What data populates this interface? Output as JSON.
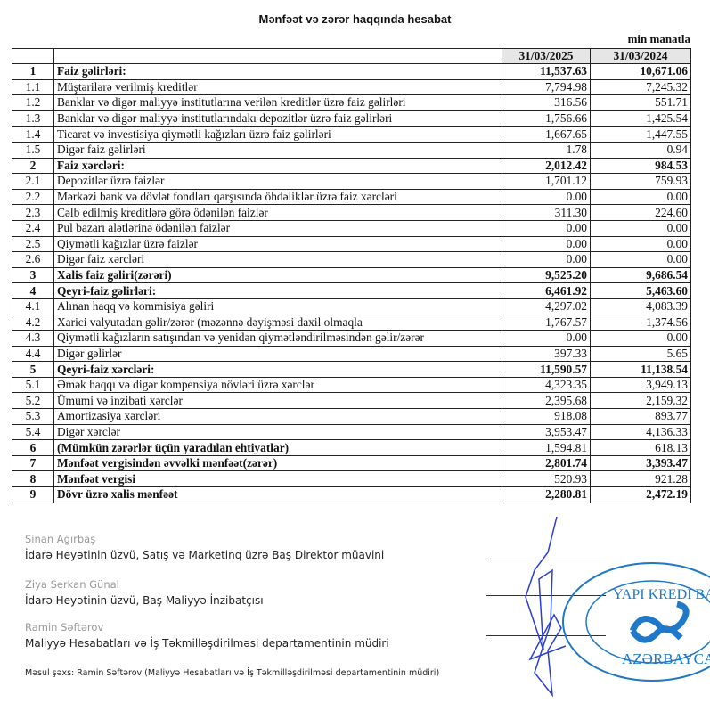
{
  "title": "Mənfəət və zərər haqqında hesabat",
  "unit": "min manatla",
  "columns": [
    "31/03/2025",
    "31/03/2024"
  ],
  "rows": [
    {
      "no": "1",
      "label": "Faiz gəlirləri:",
      "v1": "11,537.63",
      "v2": "10,671.06",
      "bold_label": true,
      "bold_values": true
    },
    {
      "no": "1.1",
      "label": "Müştərilərə verilmiş kreditlər",
      "v1": "7,794.98",
      "v2": "7,245.32"
    },
    {
      "no": "1.2",
      "label": "Banklar və digər maliyyə institutlarına verilən kreditlər üzrə faiz gəlirləri",
      "v1": "316.56",
      "v2": "551.71"
    },
    {
      "no": "1.3",
      "label": "Banklar və digər maliyyə institutlarındakı depozitlər üzrə faiz gəlirləri",
      "v1": "1,756.66",
      "v2": "1,425.54"
    },
    {
      "no": "1.4",
      "label": "Ticarət və investisiya qiymətli kağızları üzrə faiz gəlirləri",
      "v1": "1,667.65",
      "v2": "1,447.55"
    },
    {
      "no": "1.5",
      "label": "Digər faiz gəlirləri",
      "v1": "1.78",
      "v2": "0.94"
    },
    {
      "no": "2",
      "label": "Faiz xərcləri:",
      "v1": "2,012.42",
      "v2": "984.53",
      "bold_label": true,
      "bold_values": true
    },
    {
      "no": "2.1",
      "label": "Depozitlər üzrə faizlər",
      "v1": "1,701.12",
      "v2": "759.93"
    },
    {
      "no": "2.2",
      "label": "Mərkəzi bank və dövlət fondları qarşısında öhdəliklər üzrə faiz xərcləri",
      "v1": "0.00",
      "v2": "0.00"
    },
    {
      "no": "2.3",
      "label": "Cəlb edilmiş kreditlərə görə ödənilən faizlər",
      "v1": "311.30",
      "v2": "224.60"
    },
    {
      "no": "2.4",
      "label": "Pul bazarı alətlərinə ödənilən faizlər",
      "v1": "0.00",
      "v2": "0.00"
    },
    {
      "no": "2.5",
      "label": "Qiymətli kağızlar üzrə faizlər",
      "v1": "0.00",
      "v2": "0.00"
    },
    {
      "no": "2.6",
      "label": "Digər faiz xərcləri",
      "v1": "0.00",
      "v2": "0.00"
    },
    {
      "no": "3",
      "label": "Xalis faiz gəliri(zərəri)",
      "v1": "9,525.20",
      "v2": "9,686.54",
      "bold_label": true,
      "bold_values": true
    },
    {
      "no": "4",
      "label": "Qeyri-faiz gəlirləri:",
      "v1": "6,461.92",
      "v2": "5,463.60",
      "bold_label": true,
      "bold_values": true
    },
    {
      "no": "4.1",
      "label": "Alınan haqq və kommisiya gəliri",
      "v1": "4,297.02",
      "v2": "4,083.39"
    },
    {
      "no": "4.2",
      "label": "Xarici valyutadan gəlir/zərər (məzənnə dəyişməsi daxil olmaqla",
      "v1": "1,767.57",
      "v2": "1,374.56"
    },
    {
      "no": "4.3",
      "label": "Qiymətli kağızların satışından və yenidən qiymətləndirilməsindən gəlir/zərər",
      "v1": "0.00",
      "v2": "0.00"
    },
    {
      "no": "4.4",
      "label": "Digər gəlirlər",
      "v1": "397.33",
      "v2": "5.65"
    },
    {
      "no": "5",
      "label": "Qeyri-faiz xərcləri:",
      "v1": "11,590.57",
      "v2": "11,138.54",
      "bold_label": true,
      "bold_values": true
    },
    {
      "no": "5.1",
      "label": "Əmək haqqı və digər kompensiya növləri üzrə xərclər",
      "v1": "4,323.35",
      "v2": "3,949.13"
    },
    {
      "no": "5.2",
      "label": "Ümumi və inzibati xərclər",
      "v1": "2,395.68",
      "v2": "2,159.32"
    },
    {
      "no": "5.3",
      "label": "Amortizasiya xərcləri",
      "v1": "918.08",
      "v2": "893.77"
    },
    {
      "no": "5.4",
      "label": "Digər xərclər",
      "v1": "3,953.47",
      "v2": "4,136.33"
    },
    {
      "no": "6",
      "label": "(Mümkün zərərlər üçün yaradılan ehtiyatlar)",
      "v1": "1,594.81",
      "v2": "618.13",
      "bold_label": true
    },
    {
      "no": "7",
      "label": "Mənfəət vergisindən əvvəlki mənfəət(zərər)",
      "v1": "2,801.74",
      "v2": "3,393.47",
      "bold_label": true,
      "bold_values": true
    },
    {
      "no": "8",
      "label": "Mənfəət vergisi",
      "v1": "520.93",
      "v2": "921.28",
      "bold_label": true
    },
    {
      "no": "9",
      "label": "Dövr üzrə xalis mənfəət",
      "v1": "2,280.81",
      "v2": "2,472.19",
      "bold_label": true,
      "bold_values": true
    }
  ],
  "signatories": [
    {
      "name": "Sinan Ağırbaş",
      "role": "İdarə Heyətinin üzvü, Satış və Marketinq üzrə Baş Direktor müavini"
    },
    {
      "name": "Ziya Serkan Günal",
      "role": "İdarə Heyətinin üzvü, Baş Maliyyə İnzibatçısı"
    },
    {
      "name": "Ramin Səftərov",
      "role": "Maliyyə Hesabatları və İş Təkmilləşdirilməsi departamentinin müdiri"
    }
  ],
  "responsible": "Məsul şəxs: Ramin Səftərov (Maliyyə Hesabatları və İş Təkmilləşdirilməsi departamentinin müdiri)",
  "stamp": {
    "text_outer": "Closed Joint Stock Company Yapı Kredi Bank Azərbaycan",
    "text_top": "YAPI KREDİ BA",
    "text_bottom": "AZƏRBAYCAN",
    "color": "#1f78c8"
  },
  "signature_color": "#2a3fd0"
}
